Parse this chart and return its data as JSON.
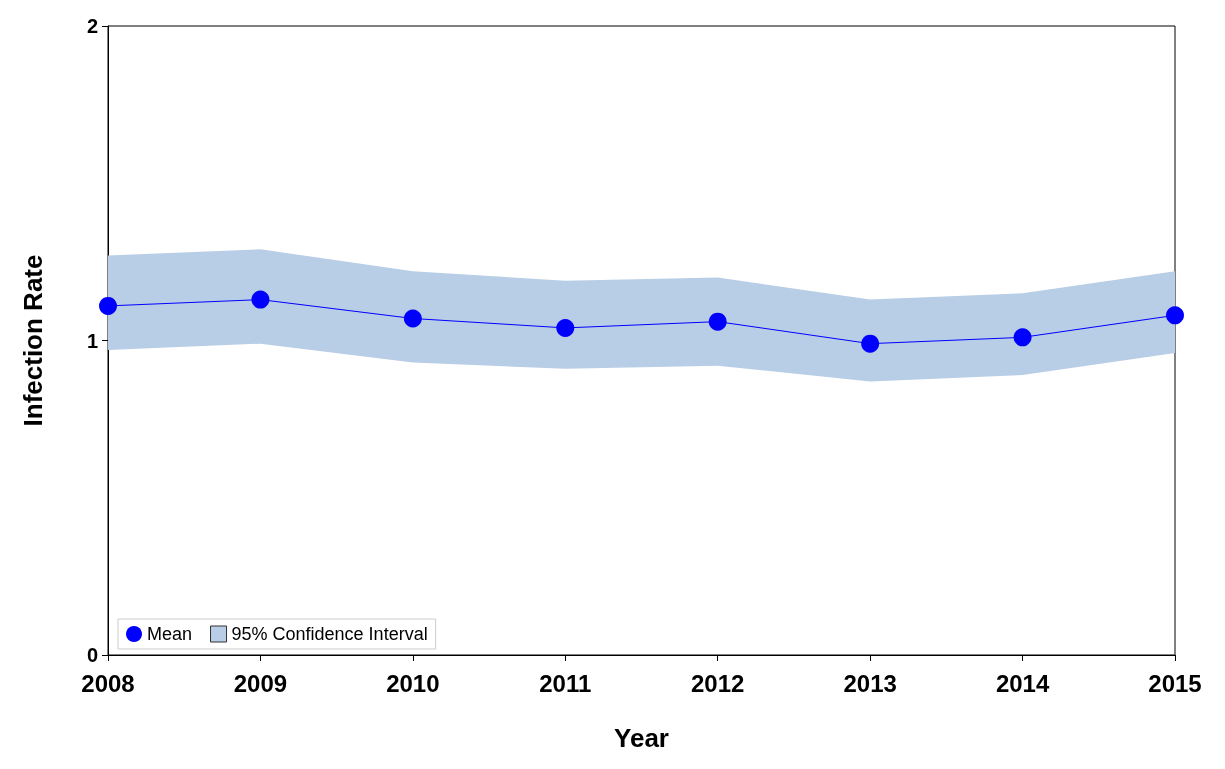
{
  "chart_data": {
    "type": "line",
    "xlabel": "Year",
    "ylabel": "Infection Rate",
    "x": [
      2008,
      2009,
      2010,
      2011,
      2012,
      2013,
      2014,
      2015
    ],
    "xlim": [
      2008,
      2015
    ],
    "xticks": [
      2008,
      2009,
      2010,
      2011,
      2012,
      2013,
      2014,
      2015
    ],
    "ylim": [
      0,
      2
    ],
    "yticks": [
      0,
      1,
      2
    ],
    "grid": false,
    "legend": "bottom left",
    "marker": "circle",
    "line_style": "solid",
    "series": [
      {
        "name": "Mean",
        "color": "#0000ff",
        "values": [
          1.11,
          1.13,
          1.07,
          1.04,
          1.06,
          0.99,
          1.01,
          1.08
        ]
      },
      {
        "name": "95% Confidence Interval",
        "type": "area",
        "color": "#b8cde6",
        "values": [
          null,
          null,
          null,
          null,
          null,
          null,
          null,
          null
        ],
        "lower": [
          0.97,
          0.99,
          0.93,
          0.91,
          0.92,
          0.87,
          0.89,
          0.96
        ],
        "upper": [
          1.27,
          1.29,
          1.22,
          1.19,
          1.2,
          1.13,
          1.15,
          1.22
        ]
      }
    ]
  }
}
